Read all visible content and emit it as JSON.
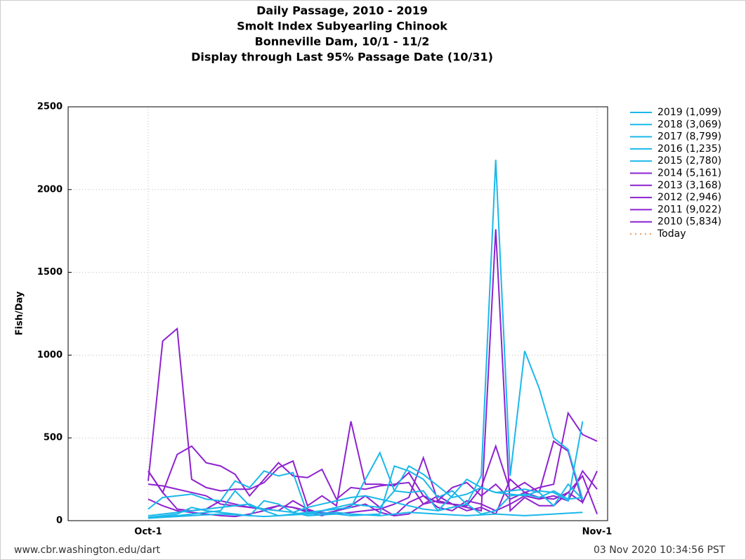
{
  "chart_data": {
    "type": "line",
    "title_lines": [
      "Daily Passage, 2010 - 2019",
      "Smolt Index Subyearling Chinook",
      "Bonneville Dam, 10/1 - 11/2",
      "Display through Last 95% Passage Date (10/31)"
    ],
    "ylabel": "Fish/Day",
    "categories": [
      "Oct-1",
      null,
      null,
      null,
      null,
      null,
      null,
      null,
      null,
      null,
      null,
      null,
      null,
      null,
      null,
      null,
      null,
      null,
      null,
      null,
      null,
      null,
      null,
      null,
      null,
      null,
      null,
      null,
      null,
      null,
      null,
      "Nov-1"
    ],
    "ylim": [
      0,
      2500
    ],
    "yticks": [
      0,
      500,
      1000,
      1500,
      2000,
      2500
    ],
    "grid": true,
    "series": [
      {
        "name": "2019 (1,099)",
        "color": "#1ab8ea",
        "values": [
          20,
          25,
          30,
          40,
          50,
          60,
          180,
          90,
          70,
          60,
          50,
          80,
          100,
          120,
          140,
          150,
          130,
          110,
          90,
          70,
          60,
          150,
          250,
          200,
          170,
          160,
          150,
          180,
          170,
          120,
          600,
          null
        ]
      },
      {
        "name": "2018 (3,069)",
        "color": "#1ab8ea",
        "values": [
          70,
          140,
          150,
          160,
          130,
          120,
          240,
          200,
          300,
          270,
          290,
          40,
          60,
          80,
          100,
          90,
          80,
          180,
          330,
          280,
          210,
          140,
          160,
          200,
          170,
          180,
          190,
          170,
          90,
          220,
          130,
          null
        ]
      },
      {
        "name": "2017 (8,799)",
        "color": "#1ab8ea",
        "values": [
          30,
          40,
          50,
          60,
          70,
          80,
          90,
          100,
          60,
          30,
          40,
          50,
          60,
          70,
          80,
          250,
          410,
          180,
          170,
          180,
          60,
          80,
          100,
          270,
          2180,
          270,
          1025,
          800,
          500,
          430,
          130,
          null
        ]
      },
      {
        "name": "2016 (1,235)",
        "color": "#1ab8ea",
        "values": [
          15,
          20,
          25,
          30,
          35,
          40,
          35,
          30,
          25,
          30,
          35,
          40,
          45,
          50,
          40,
          35,
          30,
          40,
          50,
          45,
          40,
          35,
          30,
          35,
          40,
          35,
          30,
          35,
          40,
          45,
          50,
          null
        ]
      },
      {
        "name": "2015 (2,780)",
        "color": "#1ab8ea",
        "values": [
          20,
          30,
          40,
          80,
          60,
          50,
          40,
          30,
          120,
          100,
          50,
          30,
          35,
          40,
          30,
          35,
          40,
          330,
          300,
          250,
          140,
          180,
          100,
          40,
          60,
          150,
          160,
          140,
          180,
          130,
          140,
          null
        ]
      },
      {
        "name": "2014 (5,161)",
        "color": "#8e22d0",
        "values": [
          300,
          170,
          400,
          450,
          350,
          330,
          280,
          150,
          250,
          350,
          270,
          260,
          310,
          130,
          200,
          190,
          210,
          220,
          230,
          100,
          120,
          100,
          90,
          200,
          450,
          180,
          230,
          170,
          480,
          420,
          110,
          300
        ]
      },
      {
        "name": "2013 (3,168)",
        "color": "#8e22d0",
        "values": [
          240,
          1085,
          1160,
          250,
          200,
          180,
          190,
          190,
          230,
          320,
          360,
          90,
          150,
          90,
          600,
          220,
          220,
          210,
          290,
          150,
          110,
          100,
          80,
          60,
          1760,
          60,
          140,
          90,
          90,
          170,
          110,
          null
        ]
      },
      {
        "name": "2012 (2,946)",
        "color": "#8e22d0",
        "values": [
          220,
          210,
          190,
          170,
          150,
          100,
          90,
          80,
          70,
          90,
          80,
          60,
          50,
          40,
          50,
          60,
          70,
          100,
          140,
          380,
          120,
          200,
          230,
          150,
          220,
          130,
          170,
          200,
          220,
          650,
          520,
          480
        ]
      },
      {
        "name": "2011 (9,022)",
        "color": "#8e22d0",
        "values": [
          130,
          90,
          60,
          50,
          40,
          30,
          25,
          40,
          60,
          90,
          80,
          50,
          30,
          60,
          80,
          100,
          50,
          30,
          40,
          100,
          150,
          100,
          60,
          80,
          40,
          250,
          170,
          140,
          130,
          170,
          270,
          40
        ]
      },
      {
        "name": "2010 (5,834)",
        "color": "#8e22d0",
        "values": [
          300,
          170,
          70,
          60,
          70,
          120,
          100,
          80,
          70,
          60,
          120,
          70,
          40,
          60,
          90,
          150,
          80,
          30,
          110,
          150,
          80,
          60,
          120,
          100,
          60,
          100,
          150,
          130,
          150,
          120,
          300,
          190
        ]
      }
    ],
    "reference_lines": [
      {
        "name": "Today",
        "color": "#e8a060"
      }
    ],
    "footer_left": "www.cbr.washington.edu/dart",
    "footer_right": "03 Nov 2020 10:34:56 PST"
  }
}
